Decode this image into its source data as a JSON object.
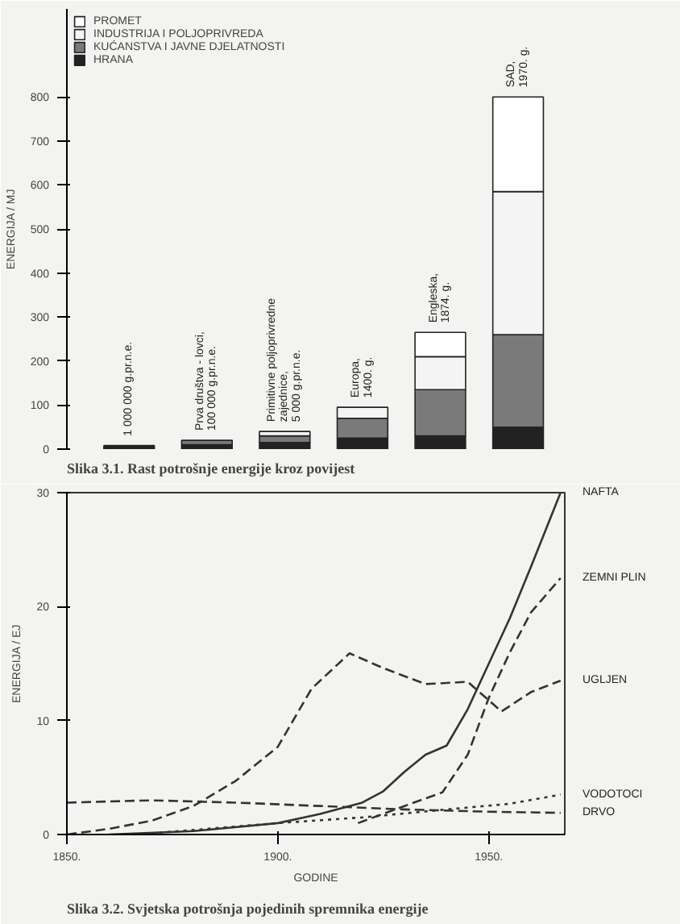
{
  "chart_data": [
    {
      "type": "bar",
      "stacked": true,
      "title": "Slika 3.1. Rast potrošnje energije kroz povijest",
      "ylabel": "ENERGIJA / MJ",
      "categories": [
        "1 000 000 g.pr.n.e.",
        "Prva društva - lovci,\n100 000 g.pr.n.e.",
        "Primitivne poljoprivredne\nzajednice,\n5 000 g.pr.n.e.",
        "Europa,\n1400. g.",
        "Engleska,\n1874. g.",
        "SAD,\n1970. g."
      ],
      "series": [
        {
          "name": "HRANA",
          "color": "#222222",
          "values": [
            8,
            10,
            15,
            25,
            30,
            50
          ]
        },
        {
          "name": "KUĆANSTVA I JAVNE DJELATNOSTI",
          "color": "#7a7a7a",
          "values": [
            null,
            10,
            15,
            45,
            105,
            210
          ]
        },
        {
          "name": "INDUSTRIJA I POLJOPRIVREDA",
          "color": "#f4f4f4",
          "values": [
            null,
            null,
            10,
            25,
            75,
            325
          ]
        },
        {
          "name": "PROMET",
          "color": "#ffffff",
          "values": [
            null,
            null,
            null,
            null,
            55,
            215
          ]
        }
      ],
      "ylim": [
        0,
        1000
      ],
      "yticks": [
        0,
        100,
        200,
        300,
        400,
        500,
        600,
        700,
        800
      ],
      "legend": "top left",
      "tick_labels": "y"
    },
    {
      "type": "line",
      "title": "Slika 3.2. Svjetska potrošnja pojedinih spremnika energije",
      "xlabel": "GODINE",
      "ylabel": "ENERGIJA / EJ",
      "xlim": [
        1850,
        1968
      ],
      "ylim": [
        0,
        30
      ],
      "xticks": [
        {
          "value": 1850,
          "label": "1850."
        },
        {
          "value": 1900,
          "label": "1900."
        },
        {
          "value": 1950,
          "label": "1950."
        }
      ],
      "yticks": [
        0,
        10,
        20,
        30
      ],
      "legend": false,
      "series": [
        {
          "name": "NAFTA",
          "color": "#333333",
          "line_style": "solid",
          "x": [
            1860,
            1880,
            1900,
            1910,
            1920,
            1925,
            1930,
            1935,
            1940,
            1945,
            1950,
            1955,
            1960,
            1967
          ],
          "values": [
            0,
            0.3,
            1.0,
            1.8,
            2.8,
            3.8,
            5.5,
            7,
            7.8,
            11,
            15,
            19,
            23.5,
            30
          ]
        },
        {
          "name": "ZEMNI PLIN",
          "color": "#333333",
          "line_style": "dashed",
          "x": [
            1919,
            1930,
            1939,
            1945,
            1950,
            1955,
            1960,
            1967
          ],
          "values": [
            1.0,
            2.5,
            3.7,
            7,
            12,
            16,
            19.5,
            22.5
          ]
        },
        {
          "name": "UGLJEN",
          "color": "#333333",
          "line_style": "dashed",
          "x": [
            1850,
            1860,
            1870,
            1880,
            1890,
            1900,
            1908,
            1917,
            1925,
            1935,
            1945,
            1953,
            1960,
            1967
          ],
          "values": [
            0,
            0.5,
            1.2,
            2.5,
            4.7,
            7.7,
            12.8,
            15.9,
            14.6,
            13.2,
            13.4,
            10.8,
            12.5,
            13.5
          ]
        },
        {
          "name": "VODOTOCI",
          "color": "#333333",
          "line_style": "dotted",
          "x": [
            1870,
            1900,
            1920,
            1940,
            1955,
            1967
          ],
          "values": [
            0.1,
            1.0,
            1.5,
            2.2,
            2.7,
            3.5
          ]
        },
        {
          "name": "DRVO",
          "color": "#333333",
          "line_style": "dashed",
          "x": [
            1850,
            1870,
            1890,
            1910,
            1930,
            1950,
            1967
          ],
          "values": [
            2.8,
            3.0,
            2.8,
            2.5,
            2.2,
            2.0,
            1.9
          ]
        }
      ]
    }
  ]
}
